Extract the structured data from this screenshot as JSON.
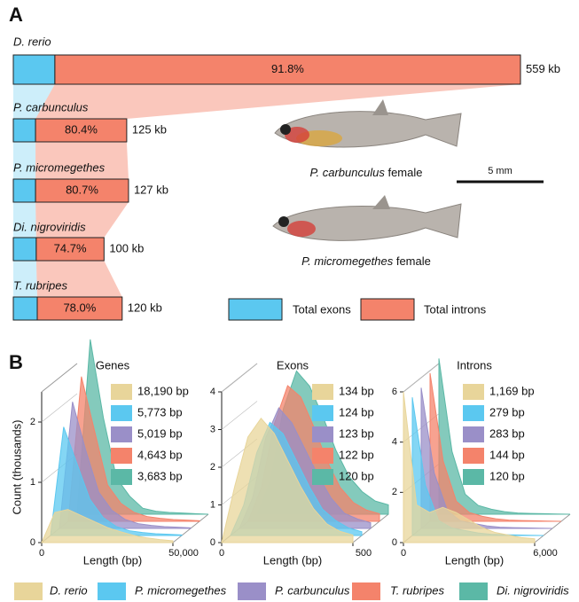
{
  "panel_labels": [
    "A",
    "B"
  ],
  "chart_data": [
    {
      "type": "stacked-bar",
      "categories": [
        "D. rerio",
        "P. carbunculus",
        "P. micromegethes",
        "Di. nigroviridis",
        "T. rubripes"
      ],
      "series": [
        {
          "name": "Total exons",
          "color": "#5bc8f0"
        },
        {
          "name": "Total introns",
          "color": "#f4836b",
          "values": [
            91.8,
            80.4,
            80.7,
            74.7,
            78.0
          ],
          "value_labels": [
            "91.8%",
            "80.4%",
            "80.7%",
            "74.7%",
            "78.0%"
          ]
        }
      ],
      "totals": [
        559,
        125,
        127,
        100,
        120
      ],
      "total_labels": [
        "559 kb",
        "125 kb",
        "127 kb",
        "100 kb",
        "120 kb"
      ]
    },
    {
      "type": "histogram3d",
      "title": "Genes",
      "xlabel": "Length (bp)",
      "ylabel": "Count (thousands)",
      "xlim": [
        0,
        50000
      ],
      "xticks": [
        0,
        {
          "value": 50000,
          "label": "50,000"
        }
      ],
      "ylim": [
        0,
        2.5
      ],
      "yticks": [
        0,
        1,
        2
      ],
      "x": [
        0,
        5000,
        10000,
        15000,
        20000,
        25000,
        30000,
        35000,
        40000,
        45000,
        50000
      ],
      "series": [
        {
          "color": "#e8d59a",
          "median": 18190,
          "median_label": "18,190 bp",
          "values": [
            0,
            0.5,
            0.55,
            0.45,
            0.35,
            0.25,
            0.18,
            0.12,
            0.08,
            0.05,
            0.03
          ]
        },
        {
          "color": "#5bc8f0",
          "median": 5773,
          "median_label": "5,773 bp",
          "values": [
            0,
            1.8,
            1.2,
            0.6,
            0.3,
            0.15,
            0.08,
            0.05,
            0.03,
            0.02,
            0.01
          ]
        },
        {
          "color": "#9a8fc8",
          "median": 5019,
          "median_label": "5,019 bp",
          "values": [
            0,
            2.1,
            1.3,
            0.6,
            0.3,
            0.15,
            0.08,
            0.05,
            0.03,
            0.02,
            0.01
          ]
        },
        {
          "color": "#f4836b",
          "median": 4643,
          "median_label": "4,643 bp",
          "values": [
            0,
            2.4,
            1.5,
            0.6,
            0.3,
            0.15,
            0.08,
            0.05,
            0.03,
            0.02,
            0.01
          ]
        },
        {
          "color": "#5bb8a6",
          "median": 3683,
          "median_label": "3,683 bp",
          "values": [
            0,
            2.9,
            1.6,
            0.6,
            0.3,
            0.1,
            0.05,
            0.03,
            0.02,
            0.01,
            0
          ]
        }
      ]
    },
    {
      "type": "histogram3d",
      "title": "Exons",
      "xlabel": "Length (bp)",
      "xlim": [
        0,
        500
      ],
      "xticks": [
        0,
        500
      ],
      "ylim": [
        0,
        4
      ],
      "yticks": [
        0,
        1,
        2,
        3,
        4
      ],
      "x": [
        0,
        50,
        100,
        150,
        200,
        250,
        300,
        350,
        400,
        450,
        500
      ],
      "series": [
        {
          "color": "#e8d59a",
          "median": 134,
          "median_label": "134 bp",
          "values": [
            0,
            1.5,
            2.8,
            3.3,
            2.9,
            2.2,
            1.5,
            0.9,
            0.5,
            0.3,
            0.2
          ]
        },
        {
          "color": "#5bc8f0",
          "median": 124,
          "median_label": "124 bp",
          "values": [
            0,
            0.8,
            2.2,
            3.0,
            2.7,
            2.0,
            1.3,
            0.7,
            0.4,
            0.2,
            0.1
          ]
        },
        {
          "color": "#9a8fc8",
          "median": 123,
          "median_label": "123 bp",
          "values": [
            0,
            0.8,
            2.4,
            3.2,
            2.8,
            2.1,
            1.4,
            0.8,
            0.4,
            0.25,
            0.15
          ]
        },
        {
          "color": "#f4836b",
          "median": 122,
          "median_label": "122 bp",
          "values": [
            0,
            0.9,
            2.6,
            3.6,
            3.3,
            2.5,
            1.6,
            0.9,
            0.5,
            0.3,
            0.2
          ]
        },
        {
          "color": "#5bb8a6",
          "median": 120,
          "median_label": "120 bp",
          "values": [
            0,
            0.9,
            2.8,
            3.8,
            3.4,
            2.6,
            1.7,
            1.0,
            0.6,
            0.35,
            0.25
          ]
        }
      ]
    },
    {
      "type": "histogram3d",
      "title": "Introns",
      "xlabel": "Length (bp)",
      "xlim": [
        0,
        6000
      ],
      "xticks": [
        0,
        {
          "value": 6000,
          "label": "6,000"
        }
      ],
      "ylim": [
        0,
        6
      ],
      "yticks": [
        0,
        2,
        4,
        6
      ],
      "x": [
        0,
        600,
        1200,
        1800,
        2400,
        3000,
        3600,
        4200,
        4800,
        5400,
        6000
      ],
      "series": [
        {
          "color": "#e8d59a",
          "median": 1169,
          "median_label": "1,169 bp",
          "values": [
            6,
            1.5,
            1.2,
            1.4,
            1.2,
            0.9,
            0.6,
            0.4,
            0.3,
            0.2,
            0.15
          ]
        },
        {
          "color": "#5bc8f0",
          "median": 279,
          "median_label": "279 bp",
          "values": [
            5.5,
            2.0,
            0.6,
            0.3,
            0.2,
            0.1,
            0.05,
            0.03,
            0.02,
            0.01,
            0
          ]
        },
        {
          "color": "#9a8fc8",
          "median": 283,
          "median_label": "283 bp",
          "values": [
            5.6,
            2.2,
            0.7,
            0.3,
            0.2,
            0.1,
            0.05,
            0.03,
            0.02,
            0.01,
            0
          ]
        },
        {
          "color": "#f4836b",
          "median": 144,
          "median_label": "144 bp",
          "values": [
            5.9,
            2.4,
            0.8,
            0.35,
            0.2,
            0.1,
            0.05,
            0.03,
            0.02,
            0.01,
            0
          ]
        },
        {
          "color": "#5bb8a6",
          "median": 120,
          "median_label": "120 bp",
          "values": [
            6.2,
            2.5,
            0.8,
            0.35,
            0.2,
            0.1,
            0.05,
            0.03,
            0.02,
            0.01,
            0
          ]
        }
      ]
    }
  ],
  "legend": [
    {
      "name": "D. rerio",
      "color": "#e8d59a"
    },
    {
      "name": "P. micromegethes",
      "color": "#5bc8f0"
    },
    {
      "name": "P. carbunculus",
      "color": "#9a8fc8"
    },
    {
      "name": "T. rubripes",
      "color": "#f4836b"
    },
    {
      "name": "Di. nigroviridis",
      "color": "#5bb8a6"
    }
  ],
  "fish": {
    "captions": [
      {
        "species": "P. carbunculus",
        "sex": "female"
      },
      {
        "species": "P. micromegethes",
        "sex": "female"
      }
    ],
    "scale_bar": "5 mm"
  }
}
